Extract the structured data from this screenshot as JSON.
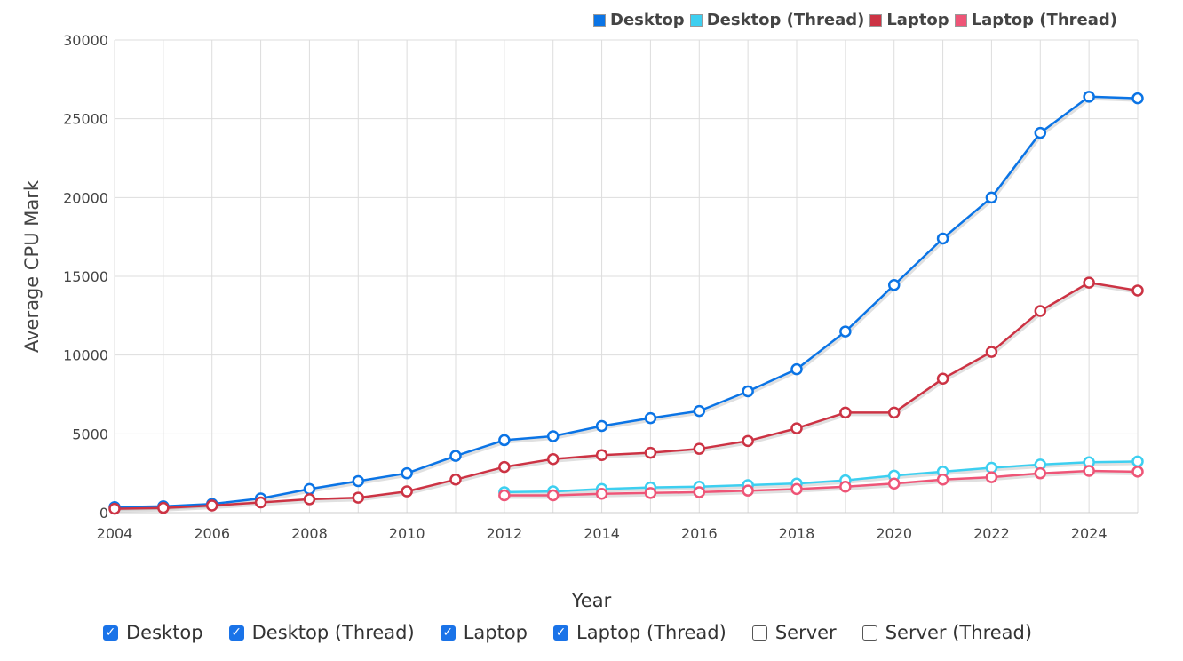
{
  "legend": [
    {
      "label": "Desktop",
      "color": "#0b74e5"
    },
    {
      "label": "Desktop (Thread)",
      "color": "#3dcff0"
    },
    {
      "label": "Laptop",
      "color": "#cc3344"
    },
    {
      "label": "Laptop (Thread)",
      "color": "#ee5577"
    }
  ],
  "toggles": [
    {
      "label": "Desktop",
      "checked": true
    },
    {
      "label": "Desktop (Thread)",
      "checked": true
    },
    {
      "label": "Laptop",
      "checked": true
    },
    {
      "label": "Laptop (Thread)",
      "checked": true
    },
    {
      "label": "Server",
      "checked": false
    },
    {
      "label": "Server (Thread)",
      "checked": false
    }
  ],
  "chart_data": {
    "type": "line",
    "xlabel": "Year",
    "ylabel": "Average CPU Mark",
    "xlim": [
      2004,
      2025
    ],
    "ylim": [
      0,
      30000
    ],
    "x_ticks": [
      "2004",
      "2006",
      "2008",
      "2010",
      "2012",
      "2014",
      "2016",
      "2018",
      "2020",
      "2022",
      "2024"
    ],
    "y_ticks": [
      "0",
      "5000",
      "10000",
      "15000",
      "20000",
      "25000",
      "30000"
    ],
    "grid": true,
    "legend_position": "top-right",
    "series": [
      {
        "name": "Desktop",
        "color": "#0b74e5",
        "x": [
          2004,
          2005,
          2006,
          2007,
          2008,
          2009,
          2010,
          2011,
          2012,
          2013,
          2014,
          2015,
          2016,
          2017,
          2018,
          2019,
          2020,
          2021,
          2022,
          2023,
          2024,
          2025
        ],
        "values": [
          350,
          400,
          550,
          900,
          1500,
          2000,
          2500,
          3600,
          4600,
          4850,
          5500,
          6000,
          6450,
          7700,
          9100,
          11500,
          14450,
          17400,
          20000,
          24100,
          26400,
          26300
        ]
      },
      {
        "name": "Desktop (Thread)",
        "color": "#3dcff0",
        "x": [
          2012,
          2013,
          2014,
          2015,
          2016,
          2017,
          2018,
          2019,
          2020,
          2021,
          2022,
          2023,
          2024,
          2025
        ],
        "values": [
          1300,
          1350,
          1500,
          1600,
          1650,
          1750,
          1850,
          2050,
          2350,
          2600,
          2850,
          3050,
          3200,
          3250
        ]
      },
      {
        "name": "Laptop",
        "color": "#cc3344",
        "x": [
          2004,
          2005,
          2006,
          2007,
          2008,
          2009,
          2010,
          2011,
          2012,
          2013,
          2014,
          2015,
          2016,
          2017,
          2018,
          2019,
          2020,
          2021,
          2022,
          2023,
          2024,
          2025
        ],
        "values": [
          250,
          300,
          450,
          650,
          850,
          950,
          1350,
          2100,
          2900,
          3400,
          3650,
          3800,
          4050,
          4550,
          5350,
          6350,
          6350,
          8500,
          10200,
          12800,
          14600,
          14100
        ]
      },
      {
        "name": "Laptop (Thread)",
        "color": "#ee5577",
        "x": [
          2012,
          2013,
          2014,
          2015,
          2016,
          2017,
          2018,
          2019,
          2020,
          2021,
          2022,
          2023,
          2024,
          2025
        ],
        "values": [
          1100,
          1100,
          1200,
          1250,
          1300,
          1400,
          1500,
          1650,
          1850,
          2100,
          2250,
          2500,
          2650,
          2600
        ]
      }
    ]
  }
}
